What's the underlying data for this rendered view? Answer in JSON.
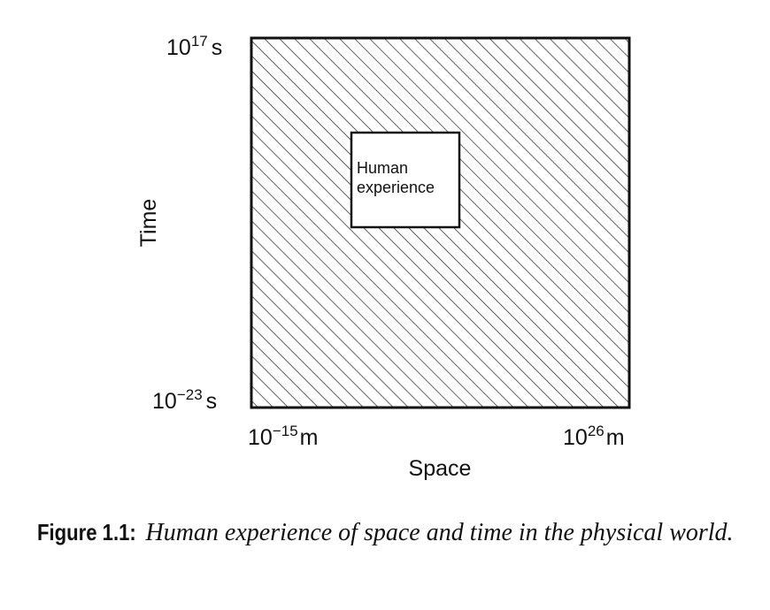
{
  "figure": {
    "y_axis": {
      "label": "Time",
      "top": {
        "base": "10",
        "exponent": "17",
        "unit": "s"
      },
      "bottom": {
        "base": "10",
        "exponent": "−23",
        "unit": "s"
      }
    },
    "x_axis": {
      "label": "Space",
      "left": {
        "base": "10",
        "exponent": "−15",
        "unit": "m"
      },
      "right": {
        "base": "10",
        "exponent": "26",
        "unit": "m"
      }
    },
    "inner_box": {
      "lines": [
        "Human",
        "experience"
      ]
    },
    "caption": {
      "label": "Figure 1.1:",
      "text": "Human experience of space and time in the physical world."
    }
  }
}
